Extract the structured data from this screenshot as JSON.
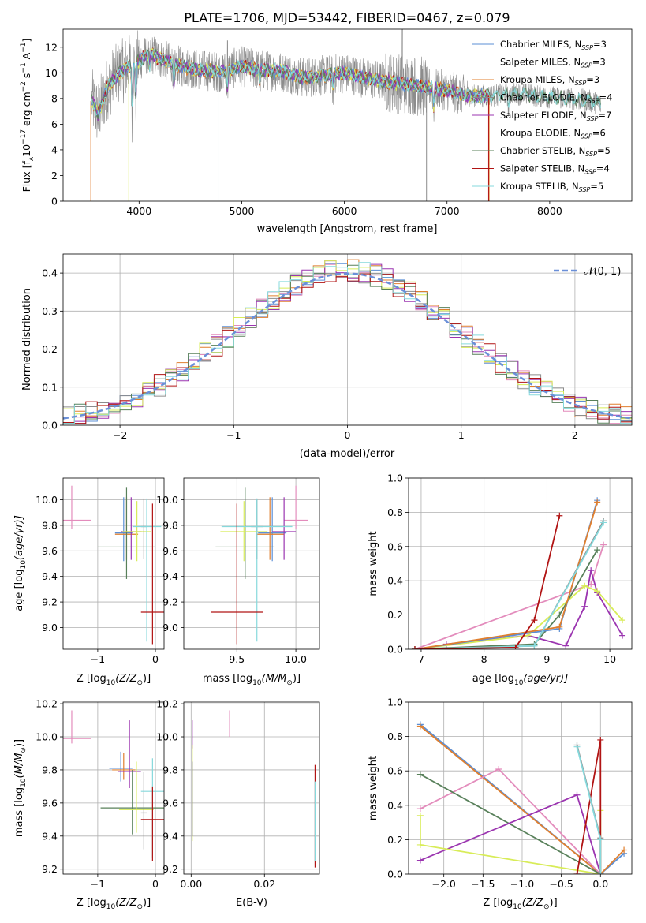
{
  "figure": {
    "title": "PLATE=1706, MJD=53442, FIBERID=0467, z=0.079"
  },
  "colors": {
    "chabrier_miles": "#5b8fd6",
    "salpeter_miles": "#e38cbc",
    "kroupa_miles": "#e07f2e",
    "chabrier_elodie": "#8c8c8c",
    "salpeter_elodie": "#9b35b0",
    "kroupa_elodie": "#d8ec58",
    "chabrier_stelib": "#58805a",
    "salpeter_stelib": "#b11414",
    "kroupa_stelib": "#86d9dc",
    "normal": "#6a8fd8",
    "grid": "#b0b0b0"
  },
  "chart_data": [
    {
      "id": "spectrum",
      "type": "line",
      "xlabel": "wavelength [Angstrom, rest frame]",
      "ylabel": "Flux [f",
      "ylabel_sub": "λ",
      "ylabel_rest": "10",
      "ylabel_sup": "−17",
      "ylabel_rest2": " erg cm",
      "ylabel_sup2": "−2",
      "ylabel_rest3": " s",
      "ylabel_sup3": "−1",
      "ylabel_rest4": " A",
      "ylabel_sup4": "−1",
      "ylabel_end": "]",
      "xlim": [
        3260,
        8800
      ],
      "ylim": [
        0,
        13.4
      ],
      "xticks": [
        4000,
        5000,
        6000,
        7000,
        8000
      ],
      "yticks": [
        0,
        2,
        4,
        6,
        8,
        10,
        12
      ],
      "grid": false,
      "legend_position": "top-right",
      "continuum": {
        "x": [
          3540,
          3600,
          3700,
          3800,
          3900,
          4000,
          4100,
          4200,
          4400,
          4600,
          4800,
          5000,
          5200,
          5400,
          5600,
          5800,
          6000,
          6200,
          6400,
          6600,
          6800,
          7000,
          7200,
          7400,
          7600,
          7800,
          8000,
          8200,
          8400,
          8500
        ],
        "y": [
          7.8,
          6.8,
          9.0,
          9.9,
          10.5,
          10.9,
          11.6,
          11.1,
          10.5,
          10.2,
          10.1,
          10.5,
          10.2,
          10.1,
          9.6,
          9.8,
          10.0,
          9.6,
          9.3,
          9.1,
          8.9,
          8.6,
          8.2,
          8.2,
          8.4,
          8.3,
          8.1,
          8.0,
          7.8,
          7.5
        ]
      },
      "legend": [
        {
          "name": "Chabrier MILES",
          "nssp": "3",
          "color_key": "chabrier_miles"
        },
        {
          "name": "Salpeter MILES",
          "nssp": "3",
          "color_key": "salpeter_miles"
        },
        {
          "name": "Kroupa MILES",
          "nssp": "3",
          "color_key": "kroupa_miles"
        },
        {
          "name": "Chabrier ELODIE",
          "nssp": "4",
          "color_key": "chabrier_elodie"
        },
        {
          "name": "Salpeter ELODIE",
          "nssp": "7",
          "color_key": "salpeter_elodie"
        },
        {
          "name": "Kroupa ELODIE",
          "nssp": "6",
          "color_key": "kroupa_elodie"
        },
        {
          "name": "Chabrier STELIB",
          "nssp": "5",
          "color_key": "chabrier_stelib"
        },
        {
          "name": "Salpeter STELIB",
          "nssp": "4",
          "color_key": "salpeter_stelib"
        },
        {
          "name": "Kroupa STELIB",
          "nssp": "5",
          "color_key": "kroupa_stelib"
        }
      ],
      "legend_prefix": "N",
      "legend_sub": "SSP",
      "legend_eq": "="
    },
    {
      "id": "residuals",
      "type": "line",
      "xlabel": "(data-model)/error",
      "ylabel": "Normed distribution",
      "xlim": [
        -2.5,
        2.5
      ],
      "ylim": [
        0,
        0.45
      ],
      "xticks": [
        -2,
        -1,
        0,
        1,
        2
      ],
      "xtick_labels": [
        "−2",
        "−1",
        "0",
        "1",
        "2"
      ],
      "yticks": [
        0.0,
        0.1,
        0.2,
        0.3,
        0.4
      ],
      "ytick_labels": [
        "0.0",
        "0.1",
        "0.2",
        "0.3",
        "0.4"
      ],
      "grid": true,
      "legend_position": "top-right",
      "normal_label": "𝒩(0, 1)",
      "bin_width": 0.1
    },
    {
      "id": "age_vs_Z",
      "type": "scatter",
      "xlabel": "Z [log",
      "xlabel_sub": "10",
      "xlabel_rest": "(Z/Z",
      "xlabel_sub2": "⊙",
      "xlabel_end": ")]",
      "ylabel": "age  [log",
      "ylabel_sub": "10",
      "ylabel_end": "(age/yr)]",
      "xlim": [
        -1.6,
        0.15
      ],
      "ylim": [
        8.83,
        10.17
      ],
      "xticks": [
        -1,
        0
      ],
      "xtick_labels": [
        "−1",
        "0"
      ],
      "yticks": [
        9.0,
        9.2,
        9.4,
        9.6,
        9.8,
        10.0
      ],
      "ytick_labels": [
        "9.0",
        "9.2",
        "9.4",
        "9.6",
        "9.8",
        "10.0"
      ],
      "grid": true,
      "points": [
        {
          "series": "salpeter_miles",
          "x": -1.45,
          "y": 9.84,
          "xerr": 0.33,
          "yerr": [
            0.07,
            0.27
          ]
        },
        {
          "series": "chabrier_miles",
          "x": -0.55,
          "y": 9.74,
          "xerr": 0.15,
          "yerr": [
            0.22,
            0.28
          ]
        },
        {
          "series": "kroupa_miles",
          "x": -0.5,
          "y": 9.73,
          "xerr": 0.2,
          "yerr": [
            0.2,
            0.29
          ]
        },
        {
          "series": "salpeter_elodie",
          "x": -0.42,
          "y": 9.75,
          "xerr": 0.18,
          "yerr": [
            0.22,
            0.27
          ]
        },
        {
          "series": "chabrier_stelib",
          "x": -0.5,
          "y": 9.63,
          "xerr": 0.5,
          "yerr": [
            0.25,
            0.47
          ]
        },
        {
          "series": "kroupa_elodie",
          "x": -0.32,
          "y": 9.75,
          "xerr": 0.25,
          "yerr": [
            0.23,
            0.24
          ]
        },
        {
          "series": "chabrier_elodie",
          "x": -0.2,
          "y": 9.79,
          "xerr": 0.05,
          "yerr": [
            0.25,
            0.22
          ]
        },
        {
          "series": "kroupa_stelib",
          "x": -0.15,
          "y": 9.79,
          "xerr": 0.25,
          "yerr": [
            0.9,
            0.22
          ]
        },
        {
          "series": "salpeter_stelib",
          "x": -0.05,
          "y": 9.12,
          "xerr": 0.2,
          "yerr": [
            0.25,
            0.85
          ]
        }
      ]
    },
    {
      "id": "age_vs_mass",
      "type": "scatter",
      "xlabel": "mass [log",
      "xlabel_sub": "10",
      "xlabel_rest": "(M/M",
      "xlabel_sub2": "⊙",
      "xlabel_end": ")]",
      "xlim": [
        9.05,
        10.2
      ],
      "ylim": [
        8.83,
        10.17
      ],
      "xticks": [
        9.5,
        10.0
      ],
      "xtick_labels": [
        "9.5",
        "10.0"
      ],
      "yticks": [
        9.0,
        9.2,
        9.4,
        9.6,
        9.8,
        10.0
      ],
      "ytick_labels": [
        "9.0",
        "9.2",
        "9.4",
        "9.6",
        "9.8",
        "10.0"
      ],
      "grid": true,
      "points": [
        {
          "series": "salpeter_miles",
          "x": 10.0,
          "y": 9.84,
          "xerr": 0.1,
          "yerr": [
            0.07,
            0.27
          ]
        },
        {
          "series": "chabrier_miles",
          "x": 9.8,
          "y": 9.74,
          "xerr": 0.12,
          "yerr": [
            0.22,
            0.28
          ]
        },
        {
          "series": "kroupa_miles",
          "x": 9.78,
          "y": 9.73,
          "xerr": 0.12,
          "yerr": [
            0.2,
            0.29
          ]
        },
        {
          "series": "salpeter_elodie",
          "x": 9.9,
          "y": 9.75,
          "xerr": 0.1,
          "yerr": [
            0.22,
            0.27
          ]
        },
        {
          "series": "chabrier_stelib",
          "x": 9.57,
          "y": 9.63,
          "xerr": 0.25,
          "yerr": [
            0.25,
            0.47
          ]
        },
        {
          "series": "kroupa_elodie",
          "x": 9.56,
          "y": 9.75,
          "xerr": 0.2,
          "yerr": [
            0.23,
            0.24
          ]
        },
        {
          "series": "chabrier_elodie",
          "x": 9.67,
          "y": 9.79,
          "xerr": 0.05,
          "yerr": [
            0.25,
            0.22
          ]
        },
        {
          "series": "kroupa_stelib",
          "x": 9.67,
          "y": 9.79,
          "xerr": 0.3,
          "yerr": [
            0.9,
            0.22
          ]
        },
        {
          "series": "salpeter_stelib",
          "x": 9.5,
          "y": 9.12,
          "xerr": 0.22,
          "yerr": [
            0.25,
            0.85
          ]
        }
      ]
    },
    {
      "id": "weight_vs_age",
      "type": "line",
      "xlabel": "age  [log",
      "xlabel_sub": "10",
      "xlabel_end": "(age/yr)]",
      "ylabel": "mass weight",
      "xlim": [
        6.8,
        10.35
      ],
      "ylim": [
        0,
        1.0
      ],
      "xticks": [
        7,
        8,
        9,
        10
      ],
      "xtick_labels": [
        "7",
        "8",
        "9",
        "10"
      ],
      "yticks": [
        0.0,
        0.2,
        0.4,
        0.6,
        0.8,
        1.0
      ],
      "ytick_labels": [
        "0.0",
        "0.2",
        "0.4",
        "0.6",
        "0.8",
        "1.0"
      ],
      "grid": true,
      "series": [
        {
          "series": "salpeter_miles",
          "x": [
            6.9,
            9.7,
            9.9
          ],
          "y": [
            0.0,
            0.38,
            0.61
          ]
        },
        {
          "series": "salpeter_elodie",
          "x": [
            7.4,
            8.7,
            9.3,
            9.6,
            9.7,
            9.8,
            10.2
          ],
          "y": [
            0.03,
            0.08,
            0.02,
            0.25,
            0.46,
            0.33,
            0.08
          ]
        },
        {
          "series": "kroupa_elodie",
          "x": [
            6.9,
            8.7,
            9.6,
            9.8,
            10.2
          ],
          "y": [
            0.0,
            0.08,
            0.37,
            0.34,
            0.17
          ]
        },
        {
          "series": "chabrier_stelib",
          "x": [
            6.9,
            8.8,
            9.2,
            9.8
          ],
          "y": [
            0.0,
            0.03,
            0.2,
            0.58
          ]
        },
        {
          "series": "chabrier_miles",
          "x": [
            6.9,
            9.2,
            9.8
          ],
          "y": [
            0.0,
            0.12,
            0.87
          ]
        },
        {
          "series": "kroupa_miles",
          "x": [
            6.9,
            9.2,
            9.8
          ],
          "y": [
            0.0,
            0.13,
            0.86
          ]
        },
        {
          "series": "chabrier_elodie",
          "x": [
            6.9,
            8.8,
            9.9
          ],
          "y": [
            0.0,
            0.02,
            0.75
          ]
        },
        {
          "series": "kroupa_stelib",
          "x": [
            6.9,
            8.8,
            9.9
          ],
          "y": [
            0.0,
            0.02,
            0.74
          ]
        },
        {
          "series": "salpeter_stelib",
          "x": [
            6.9,
            8.5,
            8.8,
            9.2
          ],
          "y": [
            0.0,
            0.01,
            0.17,
            0.78
          ]
        }
      ]
    },
    {
      "id": "mass_vs_Z",
      "type": "scatter",
      "xlabel": "Z [log",
      "xlabel_sub": "10",
      "xlabel_rest": "(Z/Z",
      "xlabel_sub2": "⊙",
      "xlabel_end": ")]",
      "ylabel": "mass [log",
      "ylabel_sub": "10",
      "ylabel_rest": "(M/M",
      "ylabel_sub2": "⊙",
      "ylabel_end": ")]",
      "xlim": [
        -1.6,
        0.15
      ],
      "ylim": [
        9.17,
        10.21
      ],
      "xticks": [
        -1,
        0
      ],
      "xtick_labels": [
        "−1",
        "0"
      ],
      "yticks": [
        9.2,
        9.4,
        9.6,
        9.8,
        10.0,
        10.2
      ],
      "ytick_labels": [
        "9.2",
        "9.4",
        "9.6",
        "9.8",
        "10.0",
        "10.2"
      ],
      "grid": true,
      "points": [
        {
          "series": "salpeter_miles",
          "x": -1.45,
          "y": 9.99,
          "xerr": 0.33,
          "yerr": [
            0.03,
            0.17
          ]
        },
        {
          "series": "chabrier_miles",
          "x": -0.6,
          "y": 9.81,
          "xerr": 0.2,
          "yerr": [
            0.08,
            0.1
          ]
        },
        {
          "series": "kroupa_miles",
          "x": -0.55,
          "y": 9.8,
          "xerr": 0.2,
          "yerr": [
            0.06,
            0.1
          ]
        },
        {
          "series": "salpeter_elodie",
          "x": -0.45,
          "y": 9.79,
          "xerr": 0.2,
          "yerr": [
            0.1,
            0.31
          ]
        },
        {
          "series": "chabrier_stelib",
          "x": -0.4,
          "y": 9.57,
          "xerr": 0.55,
          "yerr": [
            0.16,
            0.23
          ]
        },
        {
          "series": "kroupa_elodie",
          "x": -0.33,
          "y": 9.56,
          "xerr": 0.3,
          "yerr": [
            0.14,
            0.29
          ]
        },
        {
          "series": "chabrier_elodie",
          "x": -0.2,
          "y": 9.54,
          "xerr": 0.05,
          "yerr": [
            0.22,
            0.25
          ]
        },
        {
          "series": "kroupa_stelib",
          "x": -0.05,
          "y": 9.67,
          "xerr": 0.2,
          "yerr": [
            0.4,
            0.2
          ]
        },
        {
          "series": "salpeter_stelib",
          "x": -0.05,
          "y": 9.5,
          "xerr": 0.2,
          "yerr": [
            0.25,
            0.2
          ]
        }
      ]
    },
    {
      "id": "mass_vs_ebv",
      "type": "scatter",
      "xlabel": "E(B-V)",
      "xlim": [
        -0.002,
        0.035
      ],
      "ylim": [
        9.17,
        10.21
      ],
      "xticks": [
        0.0,
        0.02
      ],
      "xtick_labels": [
        "0.00",
        "0.02"
      ],
      "yticks": [
        9.2,
        9.4,
        9.6,
        9.8,
        10.0,
        10.2
      ],
      "ytick_labels": [
        "9.2",
        "9.4",
        "9.6",
        "9.8",
        "10.0",
        "10.2"
      ],
      "grid": true,
      "points": [
        {
          "series": "salpeter_miles",
          "x": 0.0105,
          "y": 10.04,
          "yerr": [
            0.04,
            0.12
          ]
        },
        {
          "series": "salpeter_elodie",
          "x": 0.0003,
          "y": 9.98,
          "yerr": [
            0.05,
            0.12
          ]
        },
        {
          "series": "kroupa_elodie",
          "x": 0.0003,
          "y": 9.7,
          "yerr": [
            0.33,
            0.25
          ]
        },
        {
          "series": "chabrier_elodie",
          "x": 0.0003,
          "y": 9.6,
          "yerr": [
            0.2,
            0.25
          ]
        },
        {
          "series": "salpeter_stelib",
          "x": 0.0338,
          "y": 9.55,
          "yerr": [
            0.34,
            0.28
          ]
        },
        {
          "series": "kroupa_stelib",
          "x": 0.0338,
          "y": 9.5,
          "yerr": [
            0.25,
            0.23
          ]
        }
      ]
    },
    {
      "id": "weight_vs_Z",
      "type": "line",
      "xlabel": "Z [log",
      "xlabel_sub": "10",
      "xlabel_rest": "(Z/Z",
      "xlabel_sub2": "⊙",
      "xlabel_end": ")]",
      "ylabel": "mass weight",
      "xlim": [
        -2.45,
        0.4
      ],
      "ylim": [
        0,
        1.0
      ],
      "xticks": [
        -2.0,
        -1.5,
        -1.0,
        -0.5,
        0.0
      ],
      "xtick_labels": [
        "−2.0",
        "−1.5",
        "−1.0",
        "−0.5",
        "0.0"
      ],
      "yticks": [
        0.0,
        0.2,
        0.4,
        0.6,
        0.8,
        1.0
      ],
      "ytick_labels": [
        "0.0",
        "0.2",
        "0.4",
        "0.6",
        "0.8",
        "1.0"
      ],
      "grid": true,
      "series": [
        {
          "series": "chabrier_miles",
          "x": [
            -2.3,
            0.0,
            0.3
          ],
          "y": [
            0.87,
            0.0,
            0.12
          ]
        },
        {
          "series": "kroupa_miles",
          "x": [
            -2.3,
            0.0,
            0.3
          ],
          "y": [
            0.86,
            0.0,
            0.14
          ]
        },
        {
          "series": "salpeter_miles",
          "x": [
            -2.3,
            -1.3,
            0.0
          ],
          "y": [
            0.38,
            0.61,
            0.0
          ]
        },
        {
          "series": "chabrier_stelib",
          "x": [
            -2.3,
            0.0
          ],
          "y": [
            0.58,
            0.0
          ]
        },
        {
          "series": "salpeter_elodie",
          "x": [
            -2.3,
            -0.3,
            0.0
          ],
          "y": [
            0.08,
            0.46,
            0.0
          ]
        },
        {
          "series": "kroupa_elodie",
          "x": [
            -2.3,
            -2.3,
            0.0,
            0.0
          ],
          "y": [
            0.34,
            0.17,
            0.0,
            0.37
          ]
        },
        {
          "series": "salpeter_stelib",
          "x": [
            -0.3,
            0.0,
            0.0
          ],
          "y": [
            0.0,
            0.78,
            0.0
          ]
        },
        {
          "series": "chabrier_elodie",
          "x": [
            -0.3,
            0.0,
            0.0
          ],
          "y": [
            0.75,
            0.21,
            0.0
          ]
        },
        {
          "series": "kroupa_stelib",
          "x": [
            -0.3,
            0.0,
            0.0
          ],
          "y": [
            0.74,
            0.2,
            0.0
          ]
        }
      ]
    }
  ]
}
